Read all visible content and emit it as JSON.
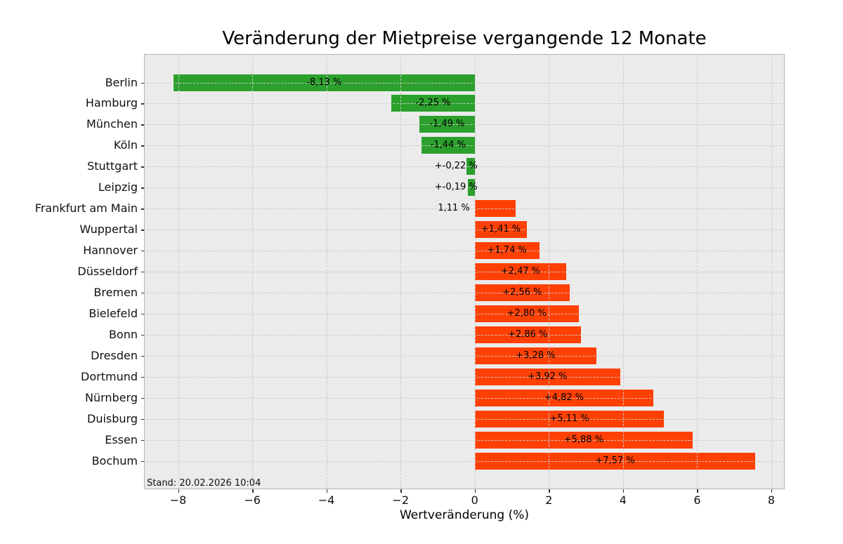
{
  "chart_data": {
    "type": "bar",
    "orientation": "horizontal",
    "title": "Veränderung der Mietpreise vergangende 12 Monate",
    "xlabel": "Wertveränderung (%)",
    "footnote": "Stand: 20.02.2026 10:04",
    "categories": [
      "Berlin",
      "Hamburg",
      "München",
      "Köln",
      "Stuttgart",
      "Leipzig",
      "Frankfurt am Main",
      "Wuppertal",
      "Hannover",
      "Düsseldorf",
      "Bremen",
      "Bielefeld",
      "Bonn",
      "Dresden",
      "Dortmund",
      "Nürnberg",
      "Duisburg",
      "Essen",
      "Bochum"
    ],
    "values": [
      -8.13,
      -2.25,
      -1.49,
      -1.44,
      -0.22,
      -0.19,
      1.11,
      1.41,
      1.74,
      2.47,
      2.56,
      2.8,
      2.86,
      3.28,
      3.92,
      4.82,
      5.11,
      5.88,
      7.57
    ],
    "bar_labels": [
      "-8,13 %",
      "-2,25 %",
      "-1,49 %",
      "-1,44 %",
      "+-0,22 %",
      "+-0,19 %",
      "1,11 %",
      "+1,41 %",
      "+1,74 %",
      "+2,47 %",
      "+2,56 %",
      "+2,80 %",
      "+2,86 %",
      "+3,28 %",
      "+3,92 %",
      "+4,82 %",
      "+5,11 %",
      "+5,88 %",
      "+7,57 %"
    ],
    "xlim": [
      -8.92,
      8.36
    ],
    "xticks": [
      -8,
      -6,
      -4,
      -2,
      0,
      2,
      4,
      6,
      8
    ],
    "xtick_labels": [
      "−8",
      "−6",
      "−4",
      "−2",
      "0",
      "2",
      "4",
      "6",
      "8"
    ],
    "bar_height_fraction": 0.8,
    "grid": {
      "visible": true,
      "style": "dashed",
      "above_bars": true
    },
    "legend": {
      "visible": false
    },
    "colors": {
      "negative_bar": "#2ca02c",
      "positive_bar": "#ff4005",
      "plot_background": "#ebebeb",
      "figure_background": "#ffffff",
      "grid_line": "#c9c9c9",
      "spine": "#b3b3b3",
      "text": "#000000"
    }
  }
}
